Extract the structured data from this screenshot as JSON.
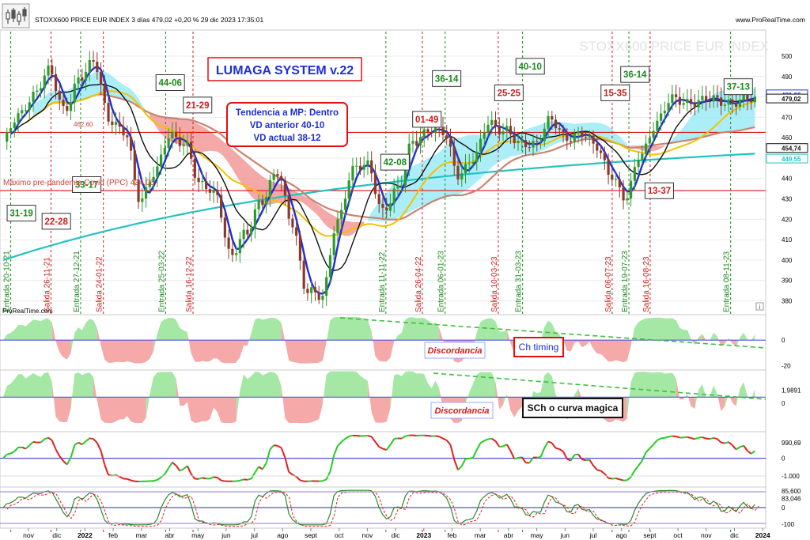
{
  "header": {
    "title": "STOXX600 PRICE EUR INDEX 3 días 479,02 +0,20 % 29 dic 2023 17:35:01",
    "brand": "www.ProRealTime.com",
    "watermark": "STOXX600 PRICE EUR INDEX",
    "panel_credit": "ProRealTime.com",
    "info_icon_glyph": "i"
  },
  "colors": {
    "price_bullish": "#2e9b2e",
    "price_bearish": "#8b3a2a",
    "blue_line": "#1f2fd6",
    "black_line": "#111111",
    "yellow_line": "#f2c200",
    "brown_line": "#c98470",
    "cyan_line": "#23c2c2",
    "cloud_bull": "#8fe8f5",
    "cloud_bear": "#f28b8b",
    "entry_red": "#d11b1b",
    "entry_green": "#1a8a1a",
    "hline_red": "#e01010",
    "zero_line": "#5252d8"
  },
  "title_box": {
    "text": "LUMAGA SYSTEM v.22"
  },
  "trend_box": {
    "line1": "Tendencia a MP: Dentro",
    "line2": "VD anterior 40-10",
    "line3": "VD actual 38-12"
  },
  "level_labels": {
    "covid": "Máximo pre-pandemia Covid (PPC) 434,06",
    "small": "462,60"
  },
  "chart_data": {
    "type": "candlestick",
    "period": "3 días",
    "price_axis": {
      "ticks": [
        500,
        490,
        480,
        470,
        460,
        450,
        440,
        430,
        420,
        410,
        400,
        390,
        380
      ],
      "tick_labels": [
        "500",
        "490",
        "480",
        "470",
        "460",
        "450",
        "440",
        "430",
        "420",
        "410",
        "400",
        "390",
        "380"
      ],
      "ylim": [
        374,
        512
      ],
      "right_labels": [
        {
          "value": 481.06,
          "label": "481,06",
          "color": "#1f2fd6"
        },
        {
          "value": 479.02,
          "label": "479,02",
          "color": "#111111"
        },
        {
          "value": 454.74,
          "label": "454,74",
          "color": "#111111"
        },
        {
          "value": 449.55,
          "label": "449,55",
          "color": "#23c2c2"
        }
      ]
    },
    "time_axis": {
      "labels": [
        "nov",
        "dic",
        "2022",
        "feb",
        "mar",
        "abr",
        "may",
        "jun",
        "jul",
        "ago",
        "sept",
        "oct",
        "nov",
        "dic",
        "2023",
        "feb",
        "mar",
        "abr",
        "may",
        "jun",
        "jul",
        "ago",
        "sept",
        "oct",
        "nov",
        "dic",
        "2024"
      ]
    },
    "horizontal_levels": [
      {
        "value": 462.6,
        "label": "462,60"
      },
      {
        "value": 434.06,
        "label": "Máximo pre-pandemia Covid (PPC) 434,06"
      }
    ],
    "price_anchors": [
      [
        0,
        458
      ],
      [
        1,
        470
      ],
      [
        2,
        482
      ],
      [
        3,
        492
      ],
      [
        4,
        474
      ],
      [
        5,
        489
      ],
      [
        6,
        496
      ],
      [
        7,
        470
      ],
      [
        8,
        462
      ],
      [
        9,
        430
      ],
      [
        10,
        444
      ],
      [
        11,
        460
      ],
      [
        12,
        458
      ],
      [
        13,
        436
      ],
      [
        14,
        432
      ],
      [
        15,
        403
      ],
      [
        16,
        412
      ],
      [
        17,
        430
      ],
      [
        18,
        443
      ],
      [
        19,
        418
      ],
      [
        20,
        386
      ],
      [
        21,
        381
      ],
      [
        22,
        420
      ],
      [
        23,
        444
      ],
      [
        24,
        446
      ],
      [
        25,
        425
      ],
      [
        26,
        434
      ],
      [
        27,
        459
      ],
      [
        28,
        464
      ],
      [
        29,
        462
      ],
      [
        30,
        443
      ],
      [
        31,
        449
      ],
      [
        32,
        468
      ],
      [
        33,
        464
      ],
      [
        34,
        456
      ],
      [
        35,
        458
      ],
      [
        36,
        468
      ],
      [
        37,
        460
      ],
      [
        38,
        463
      ],
      [
        39,
        455
      ],
      [
        40,
        443
      ],
      [
        41,
        430
      ],
      [
        42,
        452
      ],
      [
        43,
        468
      ],
      [
        44,
        478
      ]
    ],
    "signals": [
      {
        "label": "Entrada 20-10-21",
        "type": "entrada",
        "x": 0.5
      },
      {
        "label": "Salida 26-11-21",
        "type": "salida",
        "x": 3.15
      },
      {
        "label": "Entrada 27-12-21",
        "type": "entrada",
        "x": 5.1
      },
      {
        "label": "Salida 24-01-22",
        "type": "salida",
        "x": 6.6
      },
      {
        "label": "Entrada 25-03-22",
        "type": "entrada",
        "x": 10.7
      },
      {
        "label": "Salida 16-12-22",
        "type": "salida",
        "x": 12.5
      },
      {
        "label": "Entrada 11-11-22",
        "type": "entrada",
        "x": 25.2
      },
      {
        "label": "Salida 26-04-22",
        "type": "salida",
        "x": 27.6
      },
      {
        "label": "Entrada 06-01-23",
        "type": "entrada",
        "x": 29.1
      },
      {
        "label": "Salida 10-03-23",
        "type": "salida",
        "x": 32.6
      },
      {
        "label": "Entrada 31-03-23",
        "type": "entrada",
        "x": 34.2
      },
      {
        "label": "Salida 06-07-23",
        "type": "salida",
        "x": 40.1
      },
      {
        "label": "Entrada 19-07-23",
        "type": "entrada",
        "x": 41.2
      },
      {
        "label": "Salida 16-08-23",
        "type": "salida",
        "x": 42.6
      },
      {
        "label": "Entrada 08-11-23",
        "type": "entrada",
        "x": 47.9
      }
    ],
    "count_labels": [
      {
        "text": "31-19",
        "color": "entrada",
        "x": 1.2,
        "y": 423
      },
      {
        "text": "22-28",
        "color": "salida",
        "x": 3.5,
        "y": 419
      },
      {
        "text": "33-17",
        "color": "entrada",
        "x": 5.5,
        "y": 437
      },
      {
        "text": "44-06",
        "color": "entrada",
        "x": 11.0,
        "y": 487
      },
      {
        "text": "21-29",
        "color": "salida",
        "x": 12.8,
        "y": 476
      },
      {
        "text": "42-08",
        "color": "entrada",
        "x": 25.8,
        "y": 448
      },
      {
        "text": "01-49",
        "color": "salida",
        "x": 27.9,
        "y": 469
      },
      {
        "text": "36-14",
        "color": "entrada",
        "x": 29.2,
        "y": 489
      },
      {
        "text": "25-25",
        "color": "salida",
        "x": 33.3,
        "y": 482
      },
      {
        "text": "40-10",
        "color": "entrada",
        "x": 34.7,
        "y": 495
      },
      {
        "text": "15-35",
        "color": "salida",
        "x": 40.3,
        "y": 482
      },
      {
        "text": "36-14",
        "color": "entrada",
        "x": 41.6,
        "y": 491
      },
      {
        "text": "13-37",
        "color": "salida",
        "x": 43.2,
        "y": 434
      },
      {
        "text": "37-13",
        "color": "entrada",
        "x": 48.4,
        "y": 485
      }
    ],
    "oscillators": [
      {
        "name": "Ch timing",
        "ticks": [
          "0",
          "-20"
        ],
        "annotation": "Discordancia"
      },
      {
        "name": "SCh o curva magica",
        "ticks": [
          "1,9891",
          "0"
        ],
        "annotation": "Discordancia"
      },
      {
        "name": "",
        "ticks": [
          "990,69",
          "0",
          "-1.000"
        ]
      },
      {
        "name": "",
        "ticks": [
          "85,600",
          "83,046",
          "0",
          "-100"
        ]
      }
    ]
  }
}
